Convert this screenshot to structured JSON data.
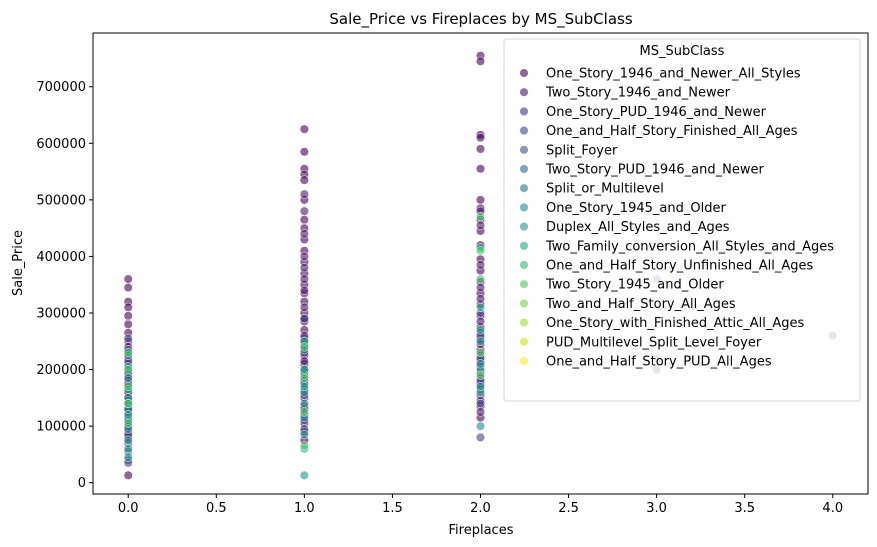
{
  "chart_data": {
    "type": "scatter",
    "title": "Sale_Price vs Fireplaces by MS_SubClass",
    "xlabel": "Fireplaces",
    "ylabel": "Sale_Price",
    "xlim": [
      -0.2,
      4.2
    ],
    "ylim": [
      -20000,
      795000
    ],
    "xticks": [
      0.0,
      0.5,
      1.0,
      1.5,
      2.0,
      2.5,
      3.0,
      3.5,
      4.0
    ],
    "xtick_labels": [
      "0.0",
      "0.5",
      "1.0",
      "1.5",
      "2.0",
      "2.5",
      "3.0",
      "3.5",
      "4.0"
    ],
    "yticks": [
      0,
      100000,
      200000,
      300000,
      400000,
      500000,
      600000,
      700000
    ],
    "ytick_labels": [
      "0",
      "100000",
      "200000",
      "300000",
      "400000",
      "500000",
      "600000",
      "700000"
    ],
    "grid": false,
    "legend": {
      "title": "MS_SubClass",
      "placement": "upper-right",
      "entries": [
        {
          "name": "One_Story_1946_and_Newer_All_Styles",
          "color": "#440154"
        },
        {
          "name": "Two_Story_1946_and_Newer",
          "color": "#481a6c"
        },
        {
          "name": "One_Story_PUD_1946_and_Newer",
          "color": "#472f7d"
        },
        {
          "name": "One_and_Half_Story_Finished_All_Ages",
          "color": "#414487"
        },
        {
          "name": "Split_Foyer",
          "color": "#39568c"
        },
        {
          "name": "Two_Story_PUD_1946_and_Newer",
          "color": "#31688e"
        },
        {
          "name": "Split_or_Multilevel",
          "color": "#2a788e"
        },
        {
          "name": "One_Story_1945_and_Older",
          "color": "#23888e"
        },
        {
          "name": "Duplex_All_Styles_and_Ages",
          "color": "#1f988b"
        },
        {
          "name": "Two_Family_conversion_All_Styles_and_Ages",
          "color": "#22a884"
        },
        {
          "name": "One_and_Half_Story_Unfinished_All_Ages",
          "color": "#35b779"
        },
        {
          "name": "Two_Story_1945_and_Older",
          "color": "#54c568"
        },
        {
          "name": "Two_and_Half_Story_All_Ages",
          "color": "#7ad151"
        },
        {
          "name": "One_Story_with_Finished_Attic_All_Ages",
          "color": "#a5db36"
        },
        {
          "name": "PUD_Multilevel_Split_Level_Foyer",
          "color": "#d2e21b"
        },
        {
          "name": "One_and_Half_Story_PUD_All_Ages",
          "color": "#fde725"
        }
      ]
    },
    "series": [
      {
        "x": 0,
        "class_index": 0,
        "y": [
          360000,
          345000,
          320000,
          310000,
          295000,
          280000,
          265000,
          250000,
          240000,
          230000,
          220000,
          210000,
          200000,
          190000,
          180000,
          170000,
          160000,
          150000,
          140000,
          130000,
          120000,
          110000,
          100000,
          90000,
          80000,
          13000
        ]
      },
      {
        "x": 0,
        "class_index": 3,
        "y": [
          255000,
          235000,
          215000,
          195000,
          175000,
          160000,
          145000,
          130000,
          115000,
          100000,
          85000,
          70000,
          55000,
          40000,
          35000
        ]
      },
      {
        "x": 0,
        "class_index": 7,
        "y": [
          225000,
          185000,
          150000,
          130000,
          110000,
          95000,
          75000,
          60000,
          45000
        ]
      },
      {
        "x": 0,
        "class_index": 9,
        "y": [
          205000,
          165000,
          140000,
          120000
        ]
      },
      {
        "x": 0,
        "class_index": 11,
        "y": [
          230000,
          200000,
          170000,
          140000,
          105000
        ]
      },
      {
        "x": 1,
        "class_index": 0,
        "y": [
          625000,
          585000,
          555000,
          545000,
          535000,
          500000,
          465000,
          450000,
          430000,
          410000,
          390000,
          370000,
          350000,
          335000,
          320000,
          300000,
          285000,
          270000,
          255000,
          240000,
          225000,
          210000,
          195000,
          180000,
          165000,
          150000,
          135000,
          120000,
          105000,
          90000,
          75000
        ]
      },
      {
        "x": 1,
        "class_index": 1,
        "y": [
          510000,
          480000,
          440000,
          400000,
          380000,
          360000,
          340000,
          310000,
          290000,
          260000,
          245000,
          230000,
          215000
        ]
      },
      {
        "x": 1,
        "class_index": 3,
        "y": [
          290000,
          250000,
          200000,
          175000,
          155000,
          130000,
          110000,
          95000
        ]
      },
      {
        "x": 1,
        "class_index": 7,
        "y": [
          235000,
          190000,
          160000,
          140000,
          115000,
          85000
        ]
      },
      {
        "x": 1,
        "class_index": 9,
        "y": [
          250000,
          200000,
          170000,
          60000
        ]
      },
      {
        "x": 1,
        "class_index": 11,
        "y": [
          240000,
          185000,
          125000,
          65000
        ]
      },
      {
        "x": 1,
        "class_index": 8,
        "y": [
          13000
        ]
      },
      {
        "x": 2,
        "class_index": 0,
        "y": [
          755000,
          745000,
          615000,
          610000,
          590000,
          555000,
          500000,
          485000,
          465000,
          445000,
          420000,
          395000,
          375000,
          355000,
          335000,
          315000,
          295000,
          275000,
          255000,
          235000,
          215000,
          195000,
          175000,
          155000,
          135000,
          115000
        ]
      },
      {
        "x": 2,
        "class_index": 1,
        "y": [
          480000,
          455000,
          385000,
          345000,
          325000,
          285000,
          265000,
          245000,
          225000,
          205000,
          185000,
          165000,
          145000,
          125000
        ]
      },
      {
        "x": 2,
        "class_index": 3,
        "y": [
          300000,
          260000,
          220000,
          180000,
          140000,
          80000
        ]
      },
      {
        "x": 2,
        "class_index": 9,
        "y": [
          415000,
          310000,
          270000,
          200000,
          160000
        ]
      },
      {
        "x": 2,
        "class_index": 11,
        "y": [
          470000,
          410000,
          360000,
          230000,
          190000
        ]
      },
      {
        "x": 2,
        "class_index": 7,
        "y": [
          250000,
          210000,
          170000,
          100000
        ]
      },
      {
        "x": 3,
        "class_index": 1,
        "y": [
          360000,
          220000
        ]
      },
      {
        "x": 3,
        "class_index": 0,
        "y": [
          200000
        ]
      },
      {
        "x": 4,
        "class_index": 0,
        "y": [
          260000
        ]
      }
    ]
  }
}
